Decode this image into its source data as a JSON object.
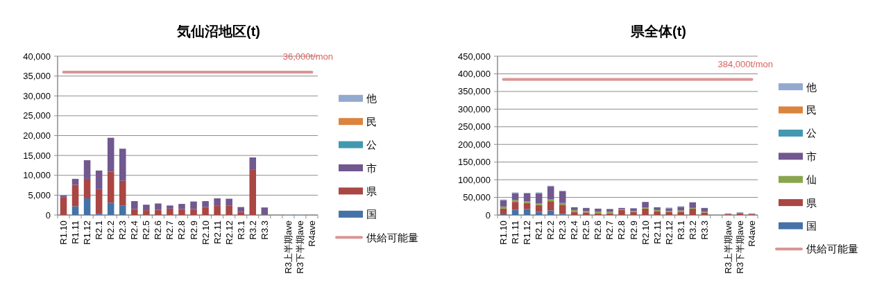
{
  "chart_data": [
    {
      "type": "bar",
      "stacked": true,
      "title": "気仙沼地区(t)",
      "grid": "y",
      "legend": "right",
      "categories": [
        "R1.10",
        "R1.11",
        "R1.12",
        "R2.1",
        "R2.2",
        "R2.3",
        "R2.4",
        "R2.5",
        "R2.6",
        "R2.7",
        "R2.8",
        "R2.9",
        "R2.10",
        "R2.11",
        "R2.12",
        "R3.1",
        "R3.2",
        "R3.3",
        null,
        "R3上半期ave",
        "R3下半期ave",
        "R4ave"
      ],
      "ylim": [
        0,
        40000
      ],
      "yticks": [
        {
          "value": 0,
          "label": "0"
        },
        {
          "value": 5000,
          "label": "5,000"
        },
        {
          "value": 10000,
          "label": "10,000"
        },
        {
          "value": 15000,
          "label": "15,000"
        },
        {
          "value": 20000,
          "label": "20,000"
        },
        {
          "value": 25000,
          "label": "25,000"
        },
        {
          "value": 30000,
          "label": "30,000"
        },
        {
          "value": 35000,
          "label": "35,000"
        },
        {
          "value": 40000,
          "label": "40,000"
        }
      ],
      "series": [
        {
          "name": "国",
          "color": "#4572a7",
          "values": [
            0,
            2200,
            4200,
            300,
            3100,
            2400,
            0,
            0,
            0,
            0,
            0,
            0,
            0,
            0,
            0,
            0,
            0,
            0,
            0,
            0,
            0,
            0
          ]
        },
        {
          "name": "県",
          "color": "#aa4643",
          "values": [
            4500,
            5400,
            4900,
            6200,
            7800,
            6200,
            1500,
            1200,
            1300,
            1600,
            1500,
            1500,
            2000,
            2300,
            2400,
            800,
            11500,
            100,
            0,
            0,
            0,
            0
          ]
        },
        {
          "name": "市",
          "color": "#71588f",
          "values": [
            400,
            1500,
            4700,
            4700,
            8500,
            8100,
            2000,
            1400,
            1600,
            800,
            1300,
            1900,
            1500,
            1900,
            1700,
            1200,
            3000,
            1800,
            0,
            0,
            0,
            0
          ]
        },
        {
          "name": "公",
          "color": "#4198af",
          "values": [
            0,
            0,
            0,
            0,
            0,
            0,
            0,
            0,
            0,
            0,
            0,
            0,
            0,
            0,
            0,
            0,
            0,
            0,
            0,
            0,
            0,
            0
          ]
        },
        {
          "name": "民",
          "color": "#db843d",
          "values": [
            0,
            0,
            0,
            0,
            0,
            0,
            0,
            0,
            0,
            0,
            0,
            0,
            0,
            0,
            0,
            0,
            0,
            0,
            0,
            0,
            0,
            0
          ]
        },
        {
          "name": "他",
          "color": "#93a9cf",
          "values": [
            0,
            0,
            0,
            0,
            100,
            0,
            0,
            0,
            0,
            0,
            0,
            0,
            0,
            0,
            0,
            0,
            0,
            0,
            0,
            100,
            100,
            0
          ]
        },
        {
          "name": "供給可能量",
          "type": "line",
          "color": "#d99694",
          "values": [
            36000,
            36000,
            36000,
            36000,
            36000,
            36000,
            36000,
            36000,
            36000,
            36000,
            36000,
            36000,
            36000,
            36000,
            36000,
            36000,
            36000,
            36000,
            36000,
            36000,
            36000,
            36000
          ]
        }
      ],
      "annotations": [
        {
          "text": "36,000t/mon",
          "y": 36000
        }
      ]
    },
    {
      "type": "bar",
      "stacked": true,
      "title": "県全体(t)",
      "grid": "y",
      "legend": "right",
      "categories": [
        "R1.10",
        "R1.11",
        "R1.12",
        "R2.1",
        "R2.2",
        "R2.3",
        "R2.4",
        "R2.5",
        "R2.6",
        "R2.7",
        "R2.8",
        "R2.9",
        "R2.10",
        "R2.11",
        "R2.12",
        "R3.1",
        "R3.2",
        "R3.3",
        null,
        "R3上半期ave",
        "R3下半期ave",
        "R4ave"
      ],
      "ylim": [
        0,
        450000
      ],
      "yticks": [
        {
          "value": 0,
          "label": "0"
        },
        {
          "value": 50000,
          "label": "50,000"
        },
        {
          "value": 100000,
          "label": "100,000"
        },
        {
          "value": 150000,
          "label": "150,000"
        },
        {
          "value": 200000,
          "label": "200,000"
        },
        {
          "value": 250000,
          "label": "250,000"
        },
        {
          "value": 300000,
          "label": "300,000"
        },
        {
          "value": 350000,
          "label": "350,000"
        },
        {
          "value": 400000,
          "label": "400,000"
        },
        {
          "value": 450000,
          "label": "450,000"
        }
      ],
      "series": [
        {
          "name": "国",
          "color": "#4572a7",
          "values": [
            2000,
            15000,
            17000,
            9000,
            13000,
            3000,
            0,
            0,
            0,
            0,
            0,
            0,
            0,
            0,
            0,
            0,
            0,
            0,
            0,
            0,
            0,
            0
          ]
        },
        {
          "name": "県",
          "color": "#aa4643",
          "values": [
            16000,
            22000,
            17000,
            19000,
            26000,
            26000,
            9000,
            7000,
            5000,
            5000,
            14000,
            8000,
            18000,
            10000,
            8000,
            8000,
            18000,
            7000,
            0,
            3000,
            4000,
            3000
          ]
        },
        {
          "name": "仙",
          "color": "#89a54e",
          "values": [
            6000,
            5000,
            5000,
            5000,
            5000,
            5000,
            5000,
            4000,
            5000,
            4000,
            2000,
            3000,
            3000,
            4000,
            4000,
            5000,
            2000,
            3000,
            0,
            0,
            2000,
            0
          ]
        },
        {
          "name": "市",
          "color": "#71588f",
          "values": [
            18000,
            20000,
            22000,
            28000,
            37000,
            33000,
            8000,
            9000,
            8000,
            8000,
            4000,
            8000,
            16000,
            8000,
            7000,
            10000,
            16000,
            10000,
            0,
            0,
            0,
            0
          ]
        },
        {
          "name": "公",
          "color": "#4198af",
          "values": [
            0,
            0,
            0,
            0,
            0,
            0,
            0,
            0,
            0,
            0,
            0,
            0,
            0,
            0,
            0,
            0,
            0,
            0,
            0,
            0,
            0,
            0
          ]
        },
        {
          "name": "民",
          "color": "#db843d",
          "values": [
            0,
            0,
            0,
            0,
            0,
            0,
            0,
            0,
            0,
            0,
            0,
            0,
            0,
            0,
            0,
            0,
            0,
            0,
            0,
            0,
            0,
            0
          ]
        },
        {
          "name": "他",
          "color": "#93a9cf",
          "values": [
            2000,
            2000,
            2000,
            3000,
            2000,
            2000,
            0,
            0,
            0,
            0,
            0,
            0,
            0,
            0,
            2000,
            2000,
            0,
            0,
            0,
            2000,
            2000,
            2000
          ]
        },
        {
          "name": "供給可能量",
          "type": "line",
          "color": "#d99694",
          "values": [
            384000,
            384000,
            384000,
            384000,
            384000,
            384000,
            384000,
            384000,
            384000,
            384000,
            384000,
            384000,
            384000,
            384000,
            384000,
            384000,
            384000,
            384000,
            384000,
            384000,
            384000,
            384000
          ]
        }
      ],
      "annotations": [
        {
          "text": "384,000t/mon",
          "y": 384000
        }
      ]
    }
  ]
}
